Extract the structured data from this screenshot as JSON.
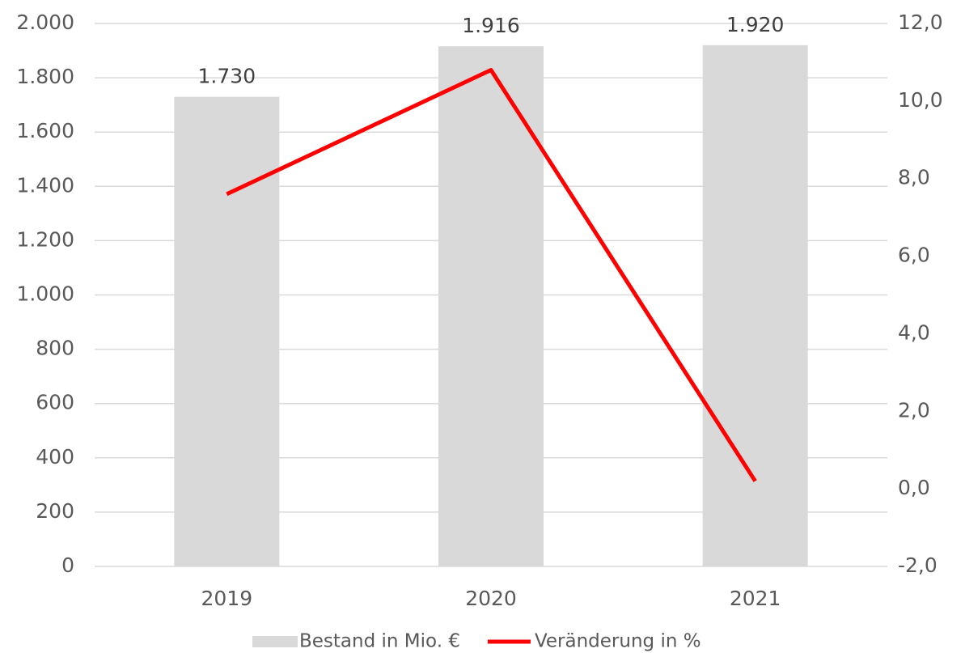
{
  "chart_data": {
    "type": "combo",
    "categories": [
      "2019",
      "2020",
      "2021"
    ],
    "series": [
      {
        "name": "Bestand in Mio. €",
        "type": "bar",
        "color": "#d9d9d9",
        "values": [
          1730,
          1916,
          1920
        ],
        "value_labels": [
          "1.730",
          "1.916",
          "1.920"
        ]
      },
      {
        "name": "Veränderung in %",
        "type": "line",
        "axis": "y2",
        "color": "#ff0000",
        "values": [
          7.6,
          10.8,
          0.2
        ]
      }
    ],
    "ylim": [
      0,
      2000
    ],
    "yticks": [
      0,
      200,
      400,
      600,
      800,
      {
        "value": 1000,
        "label": "1.000"
      },
      {
        "value": 1200,
        "label": "1.200"
      },
      {
        "value": 1400,
        "label": "1.400"
      },
      {
        "value": 1600,
        "label": "1.600"
      },
      {
        "value": 1800,
        "label": "1.800"
      },
      {
        "value": 2000,
        "label": "2.000"
      }
    ],
    "y2lim": [
      -2,
      12
    ],
    "y2ticks": [
      {
        "value": -2,
        "label": "-2,0"
      },
      {
        "value": 0,
        "label": "0,0"
      },
      {
        "value": 2,
        "label": "2,0"
      },
      {
        "value": 4,
        "label": "4,0"
      },
      {
        "value": 6,
        "label": "6,0"
      },
      {
        "value": 8,
        "label": "8,0"
      },
      {
        "value": 10,
        "label": "10,0"
      },
      {
        "value": 12,
        "label": "12,0"
      }
    ],
    "grid": true,
    "legend": "bottom"
  }
}
